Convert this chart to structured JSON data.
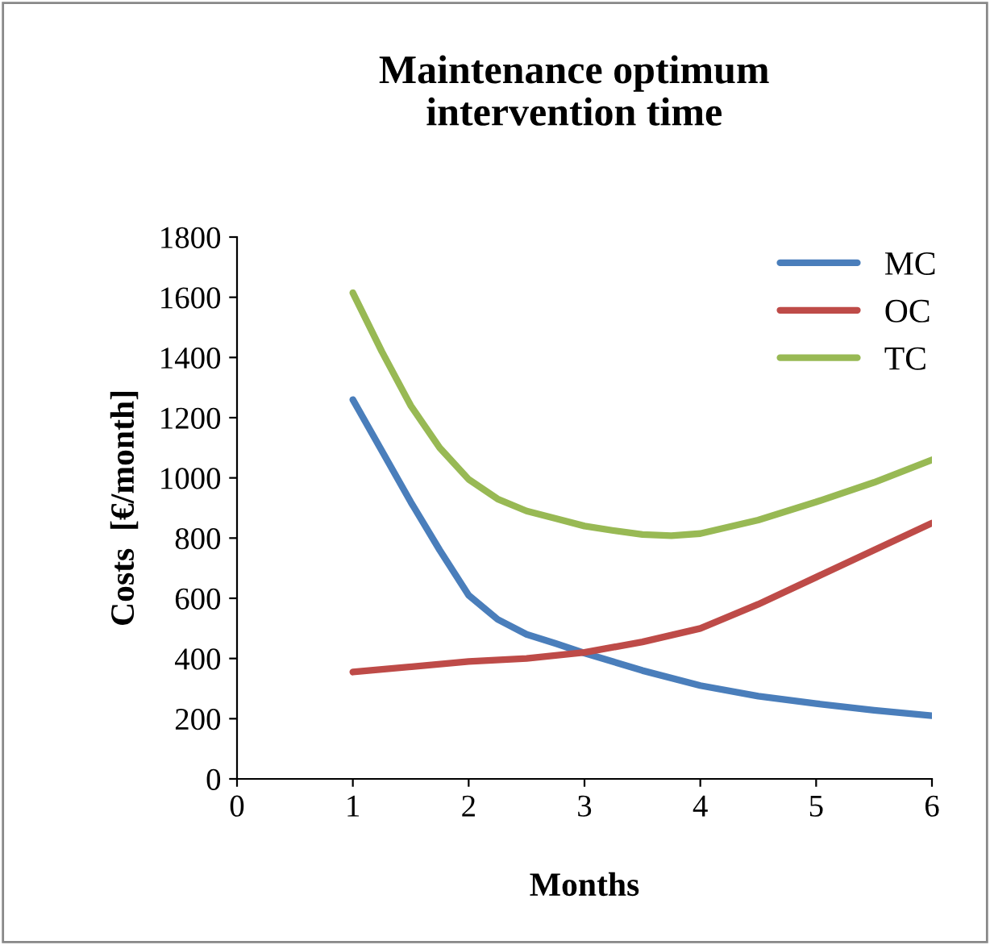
{
  "chart_data": {
    "type": "line",
    "title": "Maintenance optimum\nintervention time",
    "xlabel": "Months",
    "ylabel": "Costs  [€/month]",
    "series": [
      {
        "name": "MC",
        "color": "#4a7ebb",
        "x": [
          1,
          1.25,
          1.5,
          1.75,
          2,
          2.25,
          2.5,
          2.75,
          3,
          3.5,
          4,
          4.5,
          5,
          5.5,
          6
        ],
        "values": [
          1260,
          1090,
          920,
          760,
          610,
          530,
          480,
          450,
          418,
          360,
          310,
          275,
          250,
          228,
          210
        ]
      },
      {
        "name": "OC",
        "color": "#be4b48",
        "x": [
          1,
          2,
          2.5,
          3,
          3.5,
          4,
          4.5,
          5,
          5.5,
          6
        ],
        "values": [
          355,
          390,
          400,
          420,
          455,
          500,
          580,
          670,
          760,
          850
        ]
      },
      {
        "name": "TC",
        "color": "#98b954",
        "x": [
          1,
          1.25,
          1.5,
          1.75,
          2,
          2.25,
          2.5,
          2.75,
          3,
          3.25,
          3.5,
          3.75,
          4,
          4.5,
          5,
          5.5,
          6
        ],
        "values": [
          1615,
          1420,
          1240,
          1100,
          995,
          930,
          890,
          865,
          840,
          825,
          812,
          808,
          815,
          860,
          920,
          985,
          1060
        ]
      }
    ],
    "xlim": [
      0,
      6
    ],
    "xticks": [
      0,
      1,
      2,
      3,
      4,
      5,
      6
    ],
    "ylim": [
      0,
      1800
    ],
    "yticks": [
      0,
      200,
      400,
      600,
      800,
      1000,
      1200,
      1400,
      1600,
      1800
    ],
    "grid": false,
    "legend": "top right",
    "marker": "none",
    "line_style": "solid"
  }
}
